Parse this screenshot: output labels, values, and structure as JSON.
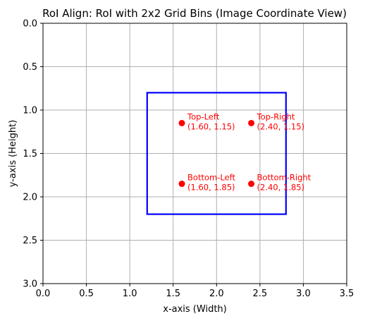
{
  "chart_data": {
    "type": "scatter",
    "title": "RoI Align: RoI with 2x2 Grid Bins (Image Coordinate View)",
    "xlabel": "x-axis (Width)",
    "ylabel": "y-axis (Height)",
    "xlim": [
      0,
      3.5
    ],
    "ylim": [
      3.0,
      0.0
    ],
    "y_inverted": true,
    "grid": true,
    "xticks": [
      0.0,
      0.5,
      1.0,
      1.5,
      2.0,
      2.5,
      3.0,
      3.5
    ],
    "xtick_labels": [
      "0.0",
      "0.5",
      "1.0",
      "1.5",
      "2.0",
      "2.5",
      "3.0",
      "3.5"
    ],
    "yticks": [
      0.0,
      0.5,
      1.0,
      1.5,
      2.0,
      2.5,
      3.0
    ],
    "ytick_labels": [
      "0.0",
      "0.5",
      "1.0",
      "1.5",
      "2.0",
      "2.5",
      "3.0"
    ],
    "roi": {
      "x_min": 1.2,
      "x_max": 2.8,
      "y_min": 0.8,
      "y_max": 2.2,
      "color": "#0000ff"
    },
    "points": [
      {
        "label": "Top-Left",
        "coord_text": "(1.60, 1.15)",
        "x": 1.6,
        "y": 1.15
      },
      {
        "label": "Top-Right",
        "coord_text": "(2.40, 1.15)",
        "x": 2.4,
        "y": 1.15
      },
      {
        "label": "Bottom-Left",
        "coord_text": "(1.60, 1.85)",
        "x": 1.6,
        "y": 1.85
      },
      {
        "label": "Bottom-Right",
        "coord_text": "(2.40, 1.85)",
        "x": 2.4,
        "y": 1.85
      }
    ],
    "point_color": "#ff0000",
    "grid_color": "#b0b0b0"
  }
}
